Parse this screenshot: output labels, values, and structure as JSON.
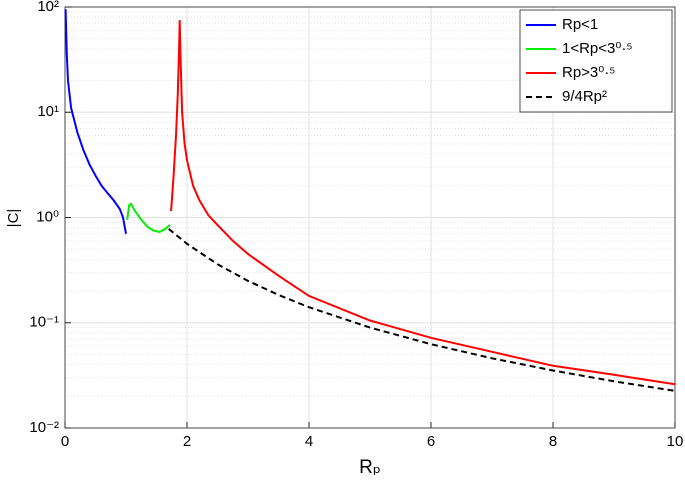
{
  "chart_data": {
    "type": "line",
    "xlabel": "Rₚ",
    "ylabel": "|C|",
    "xlim": [
      0,
      10
    ],
    "xticks": [
      0,
      2,
      4,
      6,
      8,
      10
    ],
    "ylim": [
      0.01,
      100
    ],
    "yticks": [
      {
        "value": 0.01,
        "label": "10⁻²"
      },
      {
        "value": 0.1,
        "label": "10⁻¹"
      },
      {
        "value": 1,
        "label": "10⁰"
      },
      {
        "value": 10,
        "label": "10¹"
      },
      {
        "value": 100,
        "label": "10²"
      }
    ],
    "ylog": true,
    "grid": true,
    "minor_grid": true,
    "legend": "top-right",
    "series": [
      {
        "name": "Rp<1",
        "color": "#0000ff",
        "linestyle": "solid",
        "x": [
          0.01,
          0.03,
          0.05,
          0.1,
          0.2,
          0.3,
          0.4,
          0.5,
          0.6,
          0.7,
          0.8,
          0.9,
          0.95,
          1.0
        ],
        "values": [
          95,
          35,
          20,
          11,
          6.5,
          4.4,
          3.2,
          2.5,
          2.0,
          1.7,
          1.45,
          1.2,
          1.0,
          0.7
        ]
      },
      {
        "name": "1<Rp<3⁰·⁵",
        "color": "#00ee00",
        "linestyle": "solid",
        "x": [
          1.02,
          1.05,
          1.08,
          1.15,
          1.25,
          1.35,
          1.45,
          1.55,
          1.65,
          1.72
        ],
        "values": [
          0.95,
          1.3,
          1.35,
          1.15,
          0.95,
          0.82,
          0.75,
          0.73,
          0.78,
          0.85
        ]
      },
      {
        "name": "Rp>3⁰·⁵",
        "color": "#ff0000",
        "linestyle": "solid",
        "x": [
          1.74,
          1.78,
          1.82,
          1.85,
          1.87,
          1.88,
          1.89,
          1.92,
          1.96,
          2.0,
          2.1,
          2.2,
          2.35,
          2.5,
          2.75,
          3,
          3.5,
          4,
          5,
          6,
          7,
          8,
          9,
          10
        ],
        "values": [
          1.15,
          2.5,
          6,
          15,
          40,
          75,
          40,
          10,
          5,
          3.5,
          2.0,
          1.47,
          1.05,
          0.85,
          0.6,
          0.45,
          0.28,
          0.18,
          0.105,
          0.072,
          0.053,
          0.039,
          0.032,
          0.026
        ]
      },
      {
        "name": "9/4Rp²",
        "color": "#000000",
        "linestyle": "dashed",
        "x": [
          1.7,
          2,
          2.5,
          3,
          3.5,
          4,
          5,
          6,
          7,
          8,
          9,
          10
        ],
        "values": [
          0.78,
          0.5625,
          0.36,
          0.25,
          0.184,
          0.1406,
          0.09,
          0.0625,
          0.0459,
          0.0352,
          0.0278,
          0.0225
        ]
      }
    ]
  }
}
